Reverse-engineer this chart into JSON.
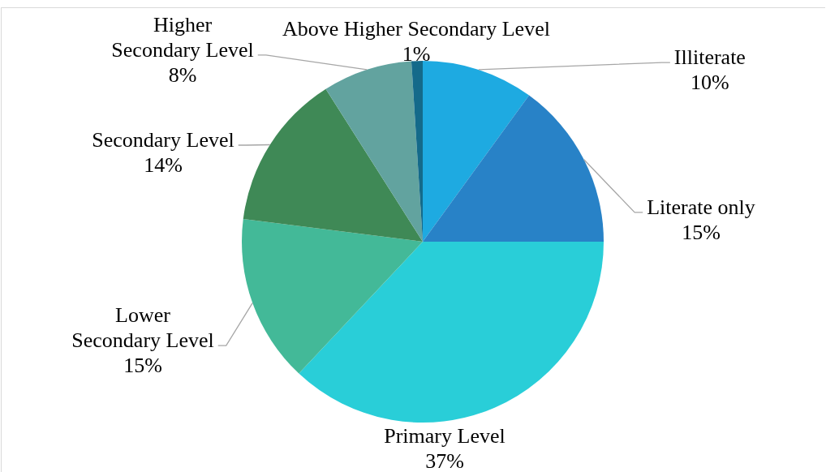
{
  "chart_data": {
    "type": "pie",
    "categories": [
      "Illiterate",
      "Literate only",
      "Primary Level",
      "Lower Secondary Level",
      "Secondary Level",
      "Higher Secondary Level",
      "Above Higher Secondary Level"
    ],
    "values": [
      10,
      15,
      37,
      15,
      14,
      8,
      1
    ],
    "value_labels": [
      "10%",
      "15%",
      "37%",
      "15%",
      "14%",
      "8%",
      "1%"
    ],
    "colors": [
      "#1eaae1",
      "#2882c7",
      "#29ced8",
      "#43b998",
      "#3f8956",
      "#62a39f",
      "#146a8a"
    ]
  }
}
